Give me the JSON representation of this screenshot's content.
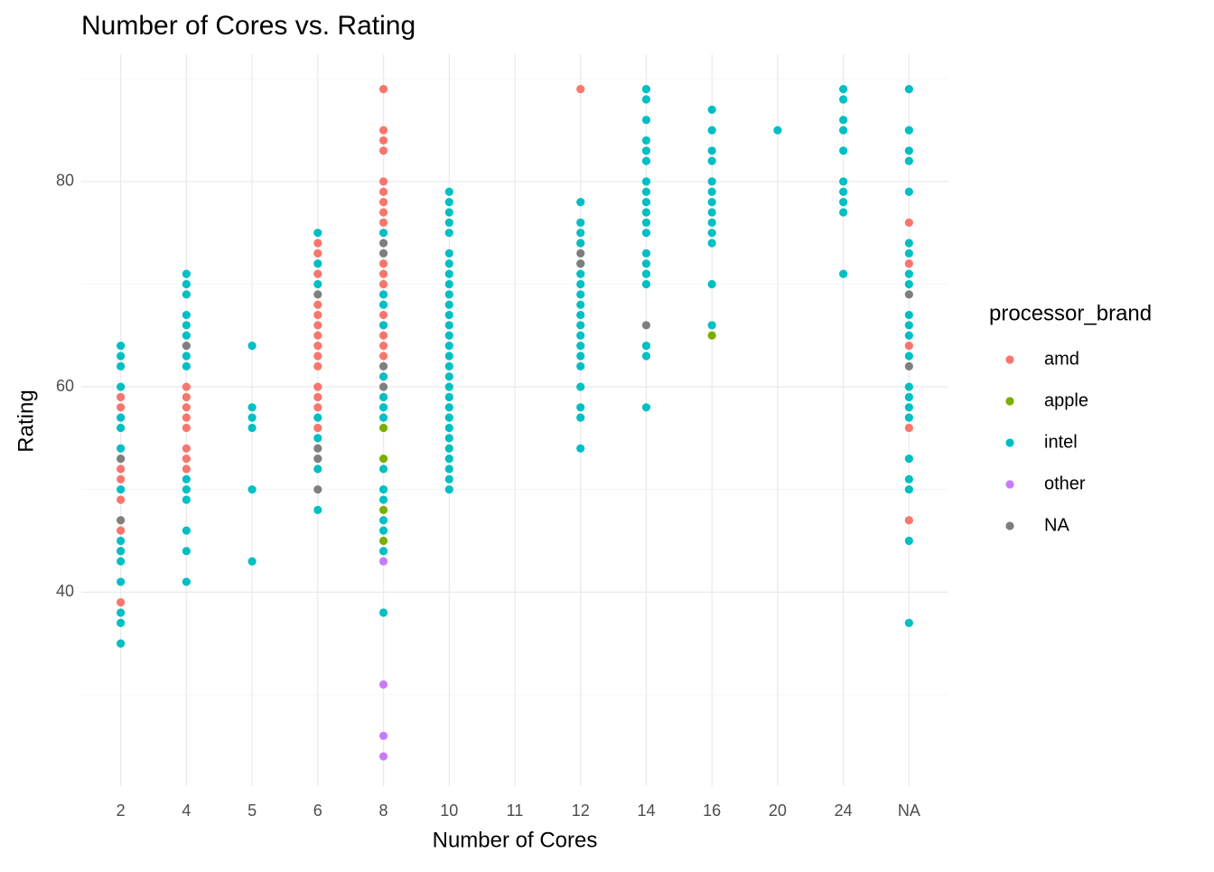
{
  "chart_data": {
    "type": "scatter",
    "title": "Number of Cores vs. Rating",
    "x_label": "Number of Cores",
    "y_label": "Rating",
    "legend_title": "processor_brand",
    "legend_position": "right",
    "grid": true,
    "minor_grid": true,
    "categories": [
      "2",
      "4",
      "5",
      "6",
      "8",
      "10",
      "11",
      "12",
      "14",
      "16",
      "20",
      "24",
      "NA"
    ],
    "ylim": [
      21.1,
      92.4
    ],
    "yticks": [
      40,
      60,
      80
    ],
    "series": [
      {
        "name": "amd",
        "color": "#F8766D",
        "x": [
          "2",
          "2",
          "2",
          "2",
          "2",
          "2",
          "2",
          "2",
          "4",
          "4",
          "4",
          "4",
          "4",
          "4",
          "4",
          "4",
          "6",
          "6",
          "6",
          "6",
          "6",
          "6",
          "6",
          "6",
          "6",
          "6",
          "6",
          "6",
          "6",
          "6",
          "8",
          "8",
          "8",
          "8",
          "8",
          "8",
          "8",
          "8",
          "8",
          "8",
          "8",
          "8",
          "8",
          "8",
          "8",
          "8",
          "8",
          "12",
          "12",
          "NA",
          "NA",
          "NA",
          "NA",
          "NA"
        ],
        "values": [
          59,
          58,
          52,
          51,
          49,
          46,
          44,
          39,
          60,
          59,
          58,
          57,
          56,
          54,
          53,
          52,
          74,
          73,
          71,
          68,
          67,
          66,
          65,
          64,
          63,
          62,
          60,
          59,
          58,
          56,
          89,
          85,
          84,
          83,
          80,
          79,
          78,
          77,
          76,
          72,
          71,
          70,
          67,
          66,
          65,
          64,
          63,
          89,
          74,
          76,
          72,
          64,
          56,
          47
        ]
      },
      {
        "name": "apple",
        "color": "#7CAE00",
        "x": [
          "8",
          "8",
          "8",
          "8",
          "16"
        ],
        "values": [
          56,
          53,
          48,
          45,
          65
        ]
      },
      {
        "name": "intel",
        "color": "#00BFC4",
        "x": [
          "2",
          "2",
          "2",
          "2",
          "2",
          "2",
          "2",
          "2",
          "2",
          "2",
          "2",
          "2",
          "2",
          "2",
          "2",
          "4",
          "4",
          "4",
          "4",
          "4",
          "4",
          "4",
          "4",
          "4",
          "4",
          "4",
          "4",
          "4",
          "4",
          "5",
          "5",
          "5",
          "5",
          "5",
          "5",
          "6",
          "6",
          "6",
          "6",
          "6",
          "6",
          "6",
          "8",
          "8",
          "8",
          "8",
          "8",
          "8",
          "8",
          "8",
          "8",
          "8",
          "8",
          "8",
          "8",
          "8",
          "8",
          "10",
          "10",
          "10",
          "10",
          "10",
          "10",
          "10",
          "10",
          "10",
          "10",
          "10",
          "10",
          "10",
          "10",
          "10",
          "10",
          "10",
          "10",
          "10",
          "10",
          "10",
          "10",
          "10",
          "10",
          "10",
          "10",
          "10",
          "10",
          "10",
          "12",
          "12",
          "12",
          "12",
          "12",
          "12",
          "12",
          "12",
          "12",
          "12",
          "12",
          "12",
          "12",
          "12",
          "12",
          "12",
          "12",
          "12",
          "12",
          "14",
          "14",
          "14",
          "14",
          "14",
          "14",
          "14",
          "14",
          "14",
          "14",
          "14",
          "14",
          "14",
          "14",
          "14",
          "14",
          "14",
          "14",
          "14",
          "16",
          "16",
          "16",
          "16",
          "16",
          "16",
          "16",
          "16",
          "16",
          "16",
          "16",
          "16",
          "16",
          "20",
          "24",
          "24",
          "24",
          "24",
          "24",
          "24",
          "24",
          "24",
          "24",
          "24",
          "NA",
          "NA",
          "NA",
          "NA",
          "NA",
          "NA",
          "NA",
          "NA",
          "NA",
          "NA",
          "NA",
          "NA",
          "NA",
          "NA",
          "NA",
          "NA",
          "NA",
          "NA",
          "NA",
          "NA",
          "NA",
          "NA"
        ],
        "values": [
          64,
          63,
          62,
          60,
          57,
          56,
          54,
          50,
          45,
          44,
          43,
          41,
          38,
          37,
          35,
          71,
          70,
          69,
          67,
          66,
          65,
          63,
          62,
          51,
          50,
          49,
          46,
          44,
          41,
          64,
          58,
          57,
          56,
          50,
          43,
          75,
          72,
          70,
          57,
          55,
          52,
          48,
          75,
          69,
          68,
          66,
          61,
          59,
          58,
          57,
          52,
          50,
          49,
          47,
          46,
          44,
          38,
          79,
          78,
          77,
          76,
          75,
          73,
          72,
          71,
          70,
          69,
          68,
          67,
          66,
          65,
          64,
          63,
          62,
          61,
          60,
          59,
          58,
          57,
          56,
          55,
          54,
          53,
          52,
          51,
          50,
          78,
          76,
          75,
          74,
          72,
          71,
          70,
          69,
          68,
          67,
          66,
          65,
          64,
          63,
          62,
          60,
          58,
          57,
          54,
          89,
          88,
          86,
          84,
          83,
          82,
          80,
          79,
          78,
          77,
          76,
          75,
          73,
          72,
          71,
          70,
          64,
          63,
          58,
          87,
          85,
          83,
          82,
          80,
          79,
          78,
          77,
          76,
          75,
          74,
          70,
          66,
          85,
          89,
          88,
          86,
          85,
          83,
          80,
          79,
          78,
          77,
          71,
          89,
          85,
          83,
          82,
          79,
          74,
          73,
          71,
          70,
          67,
          66,
          65,
          63,
          60,
          59,
          58,
          57,
          53,
          51,
          50,
          45,
          37
        ]
      },
      {
        "name": "other",
        "color": "#C77CFF",
        "x": [
          "8",
          "8",
          "8",
          "8"
        ],
        "values": [
          43,
          31,
          26,
          24
        ]
      },
      {
        "name": "NA",
        "color": "#7F7F7F",
        "x": [
          "2",
          "2",
          "4",
          "6",
          "6",
          "6",
          "6",
          "8",
          "8",
          "8",
          "8",
          "12",
          "12",
          "14",
          "NA",
          "NA"
        ],
        "values": [
          53,
          47,
          64,
          69,
          54,
          53,
          50,
          74,
          73,
          62,
          60,
          73,
          72,
          66,
          69,
          62
        ]
      }
    ]
  }
}
